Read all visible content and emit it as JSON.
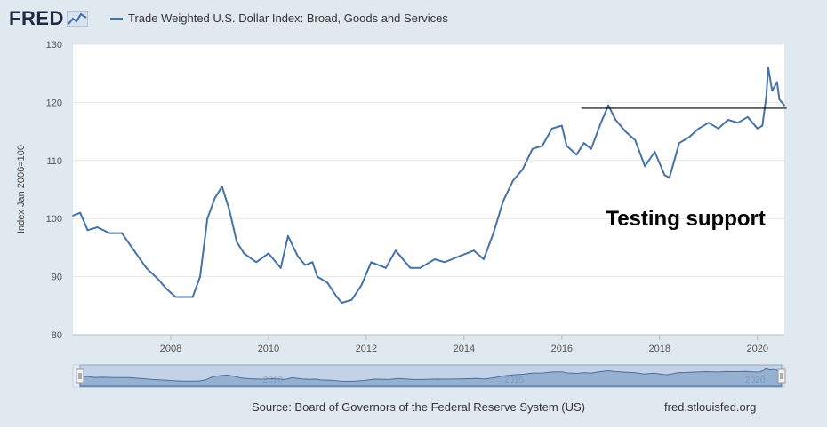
{
  "header": {
    "logo": "FRED",
    "legend_label": "Trade Weighted U.S. Dollar Index: Broad, Goods and Services"
  },
  "chart_data": {
    "type": "line",
    "title": "Trade Weighted U.S. Dollar Index: Broad, Goods and Services",
    "xlabel": "",
    "ylabel": "Index Jan 2006=100",
    "xlim": [
      2006.0,
      2020.55
    ],
    "ylim": [
      80,
      130
    ],
    "xticks": [
      2008,
      2010,
      2012,
      2014,
      2016,
      2018,
      2020
    ],
    "xtick_labels": [
      "2008",
      "2010",
      "2012",
      "2014",
      "2016",
      "2018",
      "2020"
    ],
    "yticks": [
      80,
      90,
      100,
      110,
      120,
      130
    ],
    "ytick_labels": [
      "80",
      "90",
      "100",
      "110",
      "120",
      "130"
    ],
    "grid": "horizontal",
    "color": "#4572a7",
    "series": [
      {
        "name": "Trade Weighted U.S. Dollar Index: Broad, Goods and Services",
        "x": [
          2006.0,
          2006.15,
          2006.3,
          2006.5,
          2006.75,
          2007.0,
          2007.25,
          2007.5,
          2007.75,
          2007.9,
          2008.1,
          2008.25,
          2008.45,
          2008.6,
          2008.75,
          2008.9,
          2009.05,
          2009.2,
          2009.35,
          2009.5,
          2009.75,
          2010.0,
          2010.25,
          2010.4,
          2010.6,
          2010.75,
          2010.9,
          2011.0,
          2011.2,
          2011.4,
          2011.5,
          2011.7,
          2011.9,
          2012.1,
          2012.4,
          2012.6,
          2012.9,
          2013.1,
          2013.4,
          2013.6,
          2013.9,
          2014.2,
          2014.4,
          2014.6,
          2014.8,
          2015.0,
          2015.2,
          2015.4,
          2015.6,
          2015.8,
          2016.0,
          2016.1,
          2016.3,
          2016.45,
          2016.6,
          2016.8,
          2016.95,
          2017.1,
          2017.3,
          2017.5,
          2017.7,
          2017.9,
          2018.1,
          2018.2,
          2018.4,
          2018.6,
          2018.8,
          2019.0,
          2019.2,
          2019.4,
          2019.6,
          2019.8,
          2020.0,
          2020.1,
          2020.18,
          2020.22,
          2020.3,
          2020.4,
          2020.45,
          2020.55
        ],
        "y": [
          100.5,
          101.0,
          98.0,
          98.5,
          97.5,
          97.5,
          94.5,
          91.5,
          89.5,
          88.0,
          86.5,
          86.5,
          86.5,
          90.0,
          100.0,
          103.5,
          105.5,
          101.5,
          96.0,
          94.0,
          92.5,
          94.0,
          91.5,
          97.0,
          93.5,
          92.0,
          92.5,
          90.0,
          89.0,
          86.5,
          85.5,
          86.0,
          88.5,
          92.5,
          91.5,
          94.5,
          91.5,
          91.5,
          93.0,
          92.5,
          93.5,
          94.5,
          93.0,
          97.5,
          103.0,
          106.5,
          108.5,
          112.0,
          112.5,
          115.5,
          116.0,
          112.5,
          111.0,
          113.0,
          112.0,
          116.5,
          119.5,
          117.0,
          115.0,
          113.5,
          109.0,
          111.5,
          107.5,
          107.0,
          113.0,
          114.0,
          115.5,
          116.5,
          115.5,
          117.0,
          116.5,
          117.5,
          115.5,
          116.0,
          121.0,
          126.0,
          122.0,
          123.5,
          120.5,
          119.5
        ]
      }
    ],
    "annotations": [
      {
        "type": "hline",
        "y": 119.0,
        "x_start": 2016.4,
        "x_end": 2020.6
      },
      {
        "type": "text",
        "text": "Testing support",
        "x": 2016.9,
        "y": 100.0
      }
    ],
    "navigator": {
      "tick_labels": [
        "2010",
        "2015",
        "2020"
      ]
    }
  },
  "footer": {
    "source": "Source: Board of Governors of the Federal Reserve System (US)",
    "url": "fred.stlouisfed.org"
  }
}
